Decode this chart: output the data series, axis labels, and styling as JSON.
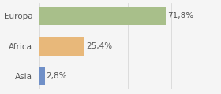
{
  "categories": [
    "Asia",
    "Africa",
    "Europa"
  ],
  "values": [
    2.8,
    25.4,
    71.8
  ],
  "labels": [
    "2,8%",
    "25,4%",
    "71,8%"
  ],
  "bar_colors": [
    "#7090c8",
    "#e8b87a",
    "#a8bf8a"
  ],
  "background_color": "#f5f5f5",
  "xlim": [
    0,
    88
  ],
  "bar_height": 0.62,
  "label_fontsize": 7.5,
  "tick_fontsize": 7.5
}
